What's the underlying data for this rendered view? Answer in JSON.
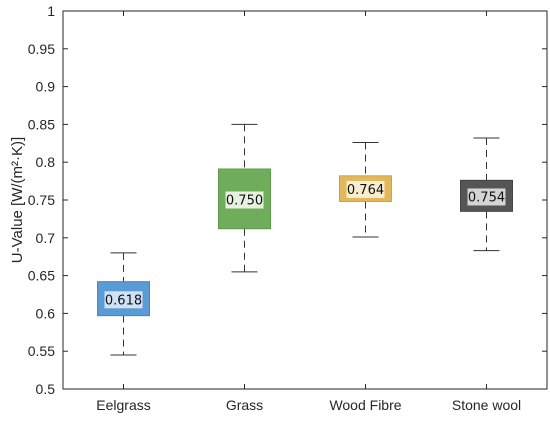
{
  "chart_data": {
    "type": "box",
    "title": "",
    "xlabel": "",
    "ylabel": "U-Value [W/(m²·K)]",
    "ylim": [
      0.5,
      1
    ],
    "yticks": [
      0.5,
      0.55,
      0.6,
      0.65,
      0.7,
      0.75,
      0.8,
      0.85,
      0.9,
      0.95,
      1
    ],
    "ytick_labels": [
      "0.5",
      "0.55",
      "0.6",
      "0.65",
      "0.7",
      "0.75",
      "0.8",
      "0.85",
      "0.9",
      "0.95",
      "1"
    ],
    "grid": false,
    "legend": "none",
    "categories": [
      "Eelgrass",
      "Grass",
      "Wood Fibre",
      "Stone wool"
    ],
    "boxes": [
      {
        "category": "Eelgrass",
        "whisker_low": 0.545,
        "q1": 0.597,
        "median": 0.618,
        "q3": 0.642,
        "whisker_high": 0.68,
        "median_label": "0.618",
        "color": "#5b9bd5",
        "edge_color": "#4a86bf",
        "label_bg": "#cfe3f5"
      },
      {
        "category": "Grass",
        "whisker_low": 0.655,
        "q1": 0.712,
        "median": 0.75,
        "q3": 0.791,
        "whisker_high": 0.85,
        "median_label": "0.750",
        "color": "#70ad5b",
        "edge_color": "#5f9a4c",
        "label_bg": "#e6f2df"
      },
      {
        "category": "Wood Fibre",
        "whisker_low": 0.701,
        "q1": 0.748,
        "median": 0.764,
        "q3": 0.782,
        "whisker_high": 0.826,
        "median_label": "0.764",
        "color": "#e3b85b",
        "edge_color": "#cfa04a",
        "label_bg": "#f9edd0"
      },
      {
        "category": "Stone wool",
        "whisker_low": 0.683,
        "q1": 0.735,
        "median": 0.754,
        "q3": 0.776,
        "whisker_high": 0.832,
        "median_label": "0.754",
        "color": "#555555",
        "edge_color": "#444444",
        "label_bg": "#d4d4d4"
      }
    ]
  }
}
